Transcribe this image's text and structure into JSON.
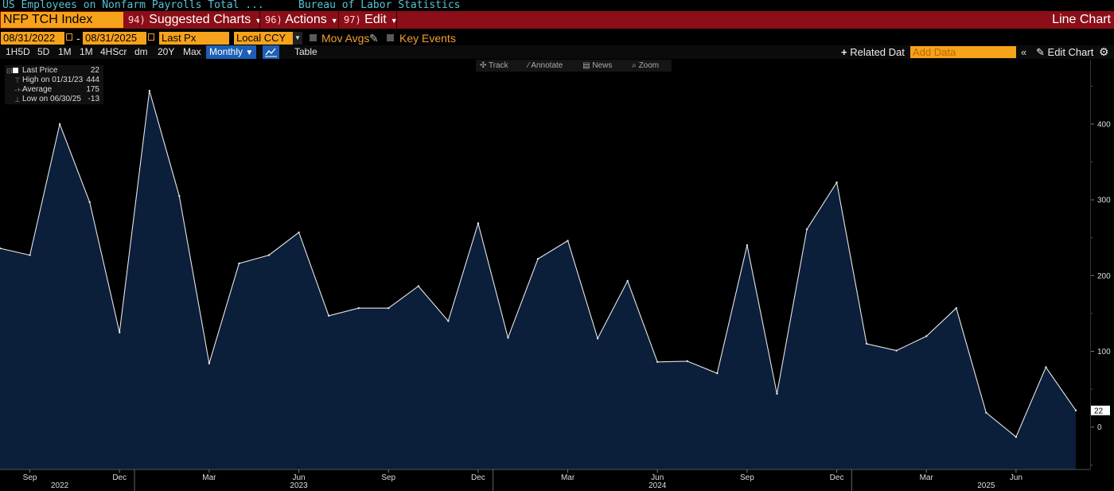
{
  "header": {
    "security_name": "US Employees on Nonfarm Payrolls Total ...",
    "source": "Bureau of Labor Statistics"
  },
  "menubar": {
    "ticker": "NFP TCH Index",
    "suggested": {
      "num": "94)",
      "label": "Suggested Charts"
    },
    "actions": {
      "num": "96)",
      "label": "Actions"
    },
    "edit": {
      "num": "97)",
      "label": "Edit"
    },
    "chart_type": "Line Chart"
  },
  "params": {
    "start_date": "08/31/2022",
    "date_sep": "-",
    "end_date": "08/31/2025",
    "field": "Last Px",
    "currency": "Local CCY",
    "mov_avgs": "Mov Avgs",
    "key_events": "Key Events"
  },
  "periods": [
    "1H5D",
    "5D",
    "1M",
    "1M",
    "4HScr",
    "dm",
    "20Y",
    "Max"
  ],
  "frequency": "Monthly",
  "table_label": "Table",
  "related_label": "Related Dat",
  "add_data_placeholder": "Add Data",
  "edit_chart_label": "Edit Chart",
  "chart_tools": [
    "Track",
    "Annotate",
    "News",
    "Zoom"
  ],
  "legend": {
    "rows": [
      {
        "label": "Last Price",
        "value": "22"
      },
      {
        "label": "High on 01/31/23",
        "value": "444"
      },
      {
        "label": "Average",
        "value": "175"
      },
      {
        "label": "Low on 06/30/25",
        "value": "-13"
      }
    ]
  },
  "colors": {
    "accent_orange": "#f7a21b",
    "menubar_red": "#8b0e18",
    "header_cyan": "#58c2d4",
    "area_fill": "#0b1e3a",
    "line": "#e6e6e6",
    "active_blue": "#1d5fb6"
  },
  "chart_data": {
    "type": "area",
    "x": [
      "2022-08",
      "2022-09",
      "2022-10",
      "2022-11",
      "2022-12",
      "2023-01",
      "2023-02",
      "2023-03",
      "2023-04",
      "2023-05",
      "2023-06",
      "2023-07",
      "2023-08",
      "2023-09",
      "2023-10",
      "2023-11",
      "2023-12",
      "2024-01",
      "2024-02",
      "2024-03",
      "2024-04",
      "2024-05",
      "2024-06",
      "2024-07",
      "2024-08",
      "2024-09",
      "2024-10",
      "2024-11",
      "2024-12",
      "2025-01",
      "2025-02",
      "2025-03",
      "2025-04",
      "2025-05",
      "2025-06",
      "2025-07",
      "2025-08"
    ],
    "series": [
      {
        "name": "Last Price",
        "values": [
          236,
          227,
          400,
          297,
          125,
          444,
          305,
          84,
          216,
          227,
          257,
          147,
          157,
          157,
          186,
          140,
          269,
          118,
          222,
          246,
          117,
          193,
          86,
          87,
          71,
          240,
          44,
          261,
          323,
          110,
          101,
          120,
          157,
          19,
          -13,
          79,
          22
        ]
      }
    ],
    "y_ticks": [
      0,
      100,
      200,
      300,
      400
    ],
    "y_tick_labels": [
      "0",
      "100",
      "200",
      "300",
      "400"
    ],
    "ylim": [
      -56,
      485
    ],
    "last_value_label": "22",
    "x_month_ticks": [
      {
        "label": "Sep",
        "x": "2022-09"
      },
      {
        "label": "Dec",
        "x": "2022-12"
      },
      {
        "label": "Mar",
        "x": "2023-03"
      },
      {
        "label": "Jun",
        "x": "2023-06"
      },
      {
        "label": "Sep",
        "x": "2023-09"
      },
      {
        "label": "Dec",
        "x": "2023-12"
      },
      {
        "label": "Mar",
        "x": "2024-03"
      },
      {
        "label": "Jun",
        "x": "2024-06"
      },
      {
        "label": "Sep",
        "x": "2024-09"
      },
      {
        "label": "Dec",
        "x": "2024-12"
      },
      {
        "label": "Mar",
        "x": "2025-03"
      },
      {
        "label": "Jun",
        "x": "2025-06"
      }
    ],
    "x_year_labels": [
      {
        "label": "2022",
        "x": "2022-10"
      },
      {
        "label": "2023",
        "x": "2023-06"
      },
      {
        "label": "2024",
        "x": "2024-06"
      },
      {
        "label": "2025",
        "x": "2025-05"
      }
    ],
    "x_year_boundaries": [
      "2023-01",
      "2024-01",
      "2025-01"
    ],
    "grid": false,
    "legend_position": "top-left"
  }
}
